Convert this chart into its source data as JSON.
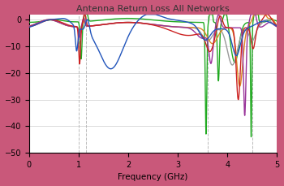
{
  "title": "Antenna Return Loss All Networks",
  "xlabel": "Frequency (GHz)",
  "xlim": [
    0,
    5
  ],
  "ylim": [
    -50,
    2
  ],
  "yticks": [
    0,
    -10,
    -20,
    -30,
    -40,
    -50
  ],
  "xticks": [
    0,
    1,
    2,
    3,
    4,
    5
  ],
  "dashed_vlines": [
    1.0,
    1.15,
    3.6,
    4.5
  ],
  "background_color": "#c9587a",
  "plot_bg_color": "#ffffff",
  "grid_color": "#cccccc",
  "title_color": "#333333",
  "line_width": 1.0,
  "colors": {
    "blue": "#2255bb",
    "red": "#cc2222",
    "green": "#22aa22",
    "gray": "#999999",
    "orange": "#dd8822",
    "purple": "#993399"
  }
}
